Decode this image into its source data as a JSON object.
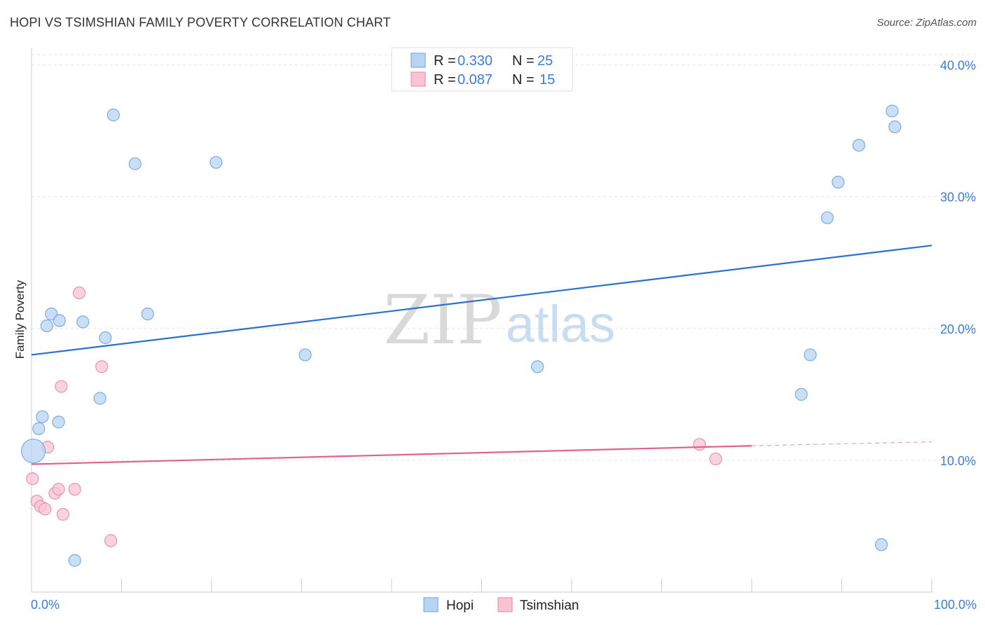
{
  "chart_data": {
    "type": "scatter",
    "title": "HOPI VS TSIMSHIAN FAMILY POVERTY CORRELATION CHART",
    "source": "Source: ZipAtlas.com",
    "watermark": {
      "zip": "ZIP",
      "atlas": "atlas"
    },
    "ylabel": "Family Poverty",
    "xlim": [
      0,
      100
    ],
    "ylim": [
      0,
      42
    ],
    "x_tick_labels": [
      "0.0%",
      "100.0%"
    ],
    "y_ticks": [
      10,
      20,
      30,
      40
    ],
    "y_tick_labels": [
      "10.0%",
      "20.0%",
      "30.0%",
      "40.0%"
    ],
    "colors": {
      "hopi_fill": "#b8d4f3",
      "hopi_stroke": "#7aaee0",
      "hopi_line": "#2b6fcf",
      "tsim_fill": "#f8c4d4",
      "tsim_stroke": "#e994b0",
      "tsim_line": "#e0608e",
      "value_text": "#3b7dd8",
      "grid": "#e4e4e4"
    },
    "legend": {
      "rows": [
        {
          "r_label": "R = ",
          "r_value": "0.330",
          "n_label": "N = ",
          "n_value": "25"
        },
        {
          "r_label": "R = ",
          "r_value": "0.087",
          "n_label": "N = ",
          "n_value": "15"
        }
      ],
      "bottom": [
        "Hopi",
        "Tsimshian"
      ]
    },
    "series": [
      {
        "name": "Hopi",
        "points": [
          [
            0.2,
            10.7,
            "large"
          ],
          [
            0.8,
            12.4
          ],
          [
            1.2,
            13.3
          ],
          [
            1.7,
            20.2
          ],
          [
            2.2,
            21.1
          ],
          [
            3.0,
            12.9
          ],
          [
            3.1,
            20.6
          ],
          [
            4.8,
            2.4
          ],
          [
            5.7,
            20.5
          ],
          [
            7.6,
            14.7
          ],
          [
            8.2,
            19.3
          ],
          [
            9.1,
            36.2
          ],
          [
            11.5,
            32.5
          ],
          [
            12.9,
            21.1
          ],
          [
            20.5,
            32.6
          ],
          [
            30.4,
            18.0
          ],
          [
            56.2,
            17.1
          ],
          [
            85.5,
            15.0
          ],
          [
            86.5,
            18.0
          ],
          [
            88.4,
            28.4
          ],
          [
            89.6,
            31.1
          ],
          [
            91.9,
            33.9
          ],
          [
            94.4,
            3.6
          ],
          [
            95.6,
            36.5
          ],
          [
            95.9,
            35.3
          ]
        ],
        "trend": {
          "x": [
            0,
            100
          ],
          "y": [
            18.0,
            26.3
          ]
        }
      },
      {
        "name": "Tsimshian",
        "points": [
          [
            0.1,
            8.6
          ],
          [
            0.6,
            6.9
          ],
          [
            1.0,
            6.5
          ],
          [
            1.5,
            6.3
          ],
          [
            1.8,
            11.0
          ],
          [
            2.6,
            7.5
          ],
          [
            3.0,
            7.8
          ],
          [
            3.3,
            15.6
          ],
          [
            3.5,
            5.9
          ],
          [
            4.8,
            7.8
          ],
          [
            5.3,
            22.7
          ],
          [
            7.8,
            17.1
          ],
          [
            8.8,
            3.9
          ],
          [
            74.2,
            11.2
          ],
          [
            76.0,
            10.1
          ]
        ],
        "trend": {
          "x": [
            0,
            80
          ],
          "y": [
            9.7,
            11.1
          ]
        },
        "trend_dashed": {
          "x": [
            80,
            100
          ],
          "y": [
            11.1,
            11.4
          ]
        }
      }
    ]
  }
}
